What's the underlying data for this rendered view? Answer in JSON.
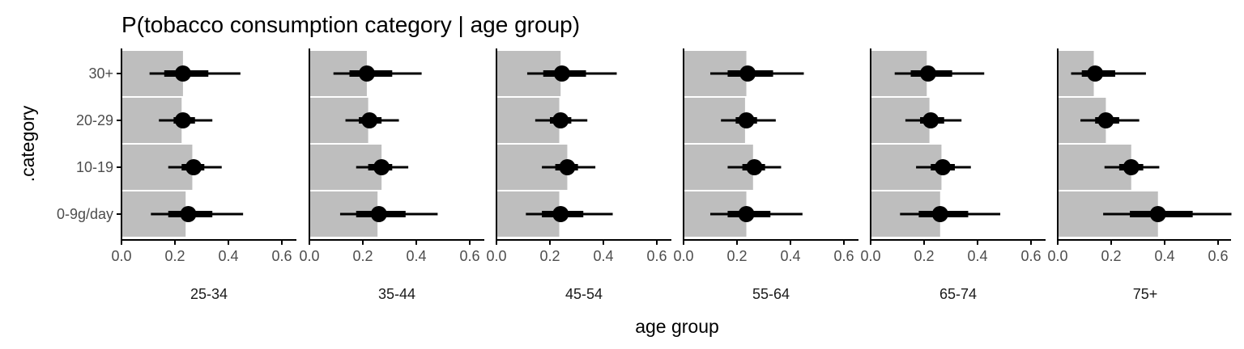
{
  "chart_data": {
    "type": "bar",
    "title": "P(tobacco consumption category | age group)",
    "xlabel": "age group",
    "ylabel": ".category",
    "categories": [
      "0-9g/day",
      "10-19",
      "20-29",
      "30+"
    ],
    "x_ticks": [
      "0.0",
      "0.2",
      "0.4",
      "0.6"
    ],
    "x_ticks_last_panel": [
      "0.0",
      "0.2",
      "0.4",
      "0.6"
    ],
    "xlim": [
      0,
      0.65
    ],
    "grid": false,
    "colors": {
      "bar": "#bebebe",
      "point": "#000000",
      "axis": "#000000",
      "tick_text": "#4d4d4d"
    },
    "panels": [
      {
        "label": "25-34",
        "bars": {
          "0-9g/day": 0.24,
          "10-19": 0.265,
          "20-29": 0.225,
          "30+": 0.23
        },
        "points": {
          "0-9g/day": {
            "median": 0.25,
            "inner": [
              0.175,
              0.34
            ],
            "outer": [
              0.11,
              0.455
            ]
          },
          "10-19": {
            "median": 0.27,
            "inner": [
              0.225,
              0.31
            ],
            "outer": [
              0.175,
              0.375
            ]
          },
          "20-29": {
            "median": 0.23,
            "inner": [
              0.195,
              0.275
            ],
            "outer": [
              0.14,
              0.34
            ]
          },
          "30+": {
            "median": 0.23,
            "inner": [
              0.16,
              0.325
            ],
            "outer": [
              0.105,
              0.445
            ]
          }
        }
      },
      {
        "label": "35-44",
        "bars": {
          "0-9g/day": 0.255,
          "10-19": 0.27,
          "20-29": 0.22,
          "30+": 0.215
        },
        "points": {
          "0-9g/day": {
            "median": 0.26,
            "inner": [
              0.175,
              0.36
            ],
            "outer": [
              0.115,
              0.48
            ]
          },
          "10-19": {
            "median": 0.27,
            "inner": [
              0.22,
              0.31
            ],
            "outer": [
              0.175,
              0.37
            ]
          },
          "20-29": {
            "median": 0.225,
            "inner": [
              0.185,
              0.27
            ],
            "outer": [
              0.135,
              0.335
            ]
          },
          "30+": {
            "median": 0.215,
            "inner": [
              0.15,
              0.31
            ],
            "outer": [
              0.09,
              0.42
            ]
          }
        }
      },
      {
        "label": "45-54",
        "bars": {
          "0-9g/day": 0.235,
          "10-19": 0.265,
          "20-29": 0.235,
          "30+": 0.24
        },
        "points": {
          "0-9g/day": {
            "median": 0.24,
            "inner": [
              0.17,
              0.325
            ],
            "outer": [
              0.11,
              0.435
            ]
          },
          "10-19": {
            "median": 0.265,
            "inner": [
              0.22,
              0.305
            ],
            "outer": [
              0.17,
              0.37
            ]
          },
          "20-29": {
            "median": 0.24,
            "inner": [
              0.2,
              0.28
            ],
            "outer": [
              0.145,
              0.34
            ]
          },
          "30+": {
            "median": 0.245,
            "inner": [
              0.175,
              0.335
            ],
            "outer": [
              0.115,
              0.45
            ]
          }
        }
      },
      {
        "label": "55-64",
        "bars": {
          "0-9g/day": 0.235,
          "10-19": 0.26,
          "20-29": 0.23,
          "30+": 0.235
        },
        "points": {
          "0-9g/day": {
            "median": 0.235,
            "inner": [
              0.165,
              0.325
            ],
            "outer": [
              0.1,
              0.445
            ]
          },
          "10-19": {
            "median": 0.265,
            "inner": [
              0.22,
              0.305
            ],
            "outer": [
              0.165,
              0.365
            ]
          },
          "20-29": {
            "median": 0.235,
            "inner": [
              0.195,
              0.275
            ],
            "outer": [
              0.14,
              0.345
            ]
          },
          "30+": {
            "median": 0.24,
            "inner": [
              0.165,
              0.335
            ],
            "outer": [
              0.1,
              0.45
            ]
          }
        }
      },
      {
        "label": "65-74",
        "bars": {
          "0-9g/day": 0.26,
          "10-19": 0.265,
          "20-29": 0.22,
          "30+": 0.21
        },
        "points": {
          "0-9g/day": {
            "median": 0.26,
            "inner": [
              0.18,
              0.365
            ],
            "outer": [
              0.11,
              0.485
            ]
          },
          "10-19": {
            "median": 0.27,
            "inner": [
              0.225,
              0.315
            ],
            "outer": [
              0.17,
              0.375
            ]
          },
          "20-29": {
            "median": 0.225,
            "inner": [
              0.185,
              0.275
            ],
            "outer": [
              0.13,
              0.34
            ]
          },
          "30+": {
            "median": 0.215,
            "inner": [
              0.15,
              0.305
            ],
            "outer": [
              0.09,
              0.425
            ]
          }
        }
      },
      {
        "label": "75+",
        "bars": {
          "0-9g/day": 0.375,
          "10-19": 0.275,
          "20-29": 0.18,
          "30+": 0.135
        },
        "points": {
          "0-9g/day": {
            "median": 0.375,
            "inner": [
              0.27,
              0.505
            ],
            "outer": [
              0.17,
              0.65
            ]
          },
          "10-19": {
            "median": 0.275,
            "inner": [
              0.23,
              0.32
            ],
            "outer": [
              0.175,
              0.38
            ]
          },
          "20-29": {
            "median": 0.18,
            "inner": [
              0.14,
              0.23
            ],
            "outer": [
              0.085,
              0.305
            ]
          },
          "30+": {
            "median": 0.14,
            "inner": [
              0.09,
              0.215
            ],
            "outer": [
              0.05,
              0.33
            ]
          }
        }
      }
    ]
  }
}
